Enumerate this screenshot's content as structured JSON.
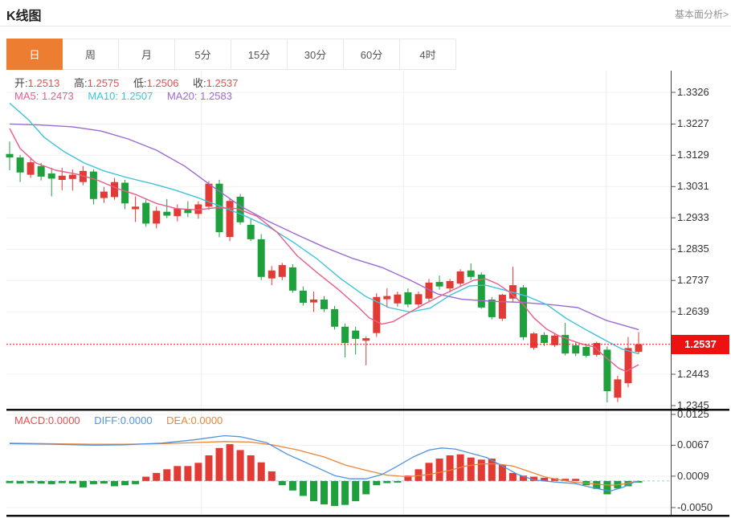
{
  "header": {
    "title": "K线图",
    "link": "基本面分析>"
  },
  "tabs": {
    "items": [
      "日",
      "周",
      "月",
      "5分",
      "15分",
      "30分",
      "60分",
      "4时"
    ],
    "selected_index": 0
  },
  "ohlc_legend": {
    "open_label": "开:",
    "open": "1.2513",
    "high_label": "高:",
    "high": "1.2575",
    "low_label": "低:",
    "low": "1.2506",
    "close_label": "收:",
    "close": "1.2537"
  },
  "ma_legend": {
    "ma5_label": "MA5:",
    "ma5": "1.2473",
    "ma10_label": "MA10:",
    "ma10": "1.2507",
    "ma20_label": "MA20:",
    "ma20": "1.2583"
  },
  "macd_legend": {
    "macd_label": "MACD:",
    "macd": "0.0000",
    "diff_label": "DIFF:",
    "diff": "0.0000",
    "dea_label": "DEA:",
    "dea": "0.0000"
  },
  "price_axis": {
    "ticks": [
      1.3326,
      1.3227,
      1.3129,
      1.3031,
      1.2933,
      1.2835,
      1.2737,
      1.2639,
      1.2443,
      1.2345
    ],
    "current_price": "1.2537",
    "current_price_value": 1.2537
  },
  "macd_axis": {
    "ticks": [
      0.0125,
      0.0067,
      0.0009,
      -0.005
    ]
  },
  "colors": {
    "up_red": "#e23b35",
    "down_green": "#1ea13c",
    "tab_accent": "#ed7d31",
    "price_flag_bg": "#ee1111",
    "ma5": "#e85d8a",
    "ma10": "#3fc3dc",
    "ma20": "#9c6ad1",
    "diff_line": "#4f94e0",
    "dea_line": "#ea8637",
    "value_red": "#e45050",
    "dotted_price_line": "#ee1111",
    "zero_dash": "#8fd2e4",
    "grid": "#f0f0f0",
    "axis": "#444"
  },
  "chart_data": [
    {
      "type": "candlestick",
      "title": "K线图 (日)",
      "ylabel": "price",
      "ylim": [
        1.2345,
        1.3326
      ],
      "grid": true,
      "legend_position": "top-left",
      "candles_ohlc": [
        [
          1.3133,
          1.3172,
          1.3082,
          1.3122
        ],
        [
          1.3122,
          1.313,
          1.3045,
          1.3075
        ],
        [
          1.3068,
          1.3118,
          1.3058,
          1.3107
        ],
        [
          1.3095,
          1.3105,
          1.305,
          1.3062
        ],
        [
          1.3072,
          1.309,
          1.3,
          1.3056
        ],
        [
          1.3052,
          1.309,
          1.302,
          1.3065
        ],
        [
          1.3055,
          1.3085,
          1.3018,
          1.3068
        ],
        [
          1.3045,
          1.3095,
          1.3035,
          1.308
        ],
        [
          1.3078,
          1.3085,
          1.2975,
          1.2992
        ],
        [
          1.2995,
          1.303,
          1.298,
          1.3015
        ],
        [
          1.2998,
          1.3058,
          1.299,
          1.3045
        ],
        [
          1.3043,
          1.3052,
          1.296,
          1.2978
        ],
        [
          1.296,
          1.3,
          1.292,
          1.2968
        ],
        [
          1.298,
          1.299,
          1.2905,
          1.2915
        ],
        [
          1.2915,
          1.2968,
          1.29,
          1.2955
        ],
        [
          1.2952,
          1.2992,
          1.2932,
          1.294
        ],
        [
          1.2938,
          1.2975,
          1.2922,
          1.2962
        ],
        [
          1.296,
          1.2985,
          1.2935,
          1.2948
        ],
        [
          1.2945,
          1.2985,
          1.293,
          1.2975
        ],
        [
          1.2968,
          1.3048,
          1.2958,
          1.304
        ],
        [
          1.304,
          1.3052,
          1.2872,
          1.2888
        ],
        [
          1.2873,
          1.2992,
          1.286,
          1.2986
        ],
        [
          1.2999,
          1.3008,
          1.2912,
          1.2919
        ],
        [
          1.2911,
          1.2932,
          1.286,
          1.2866
        ],
        [
          1.2866,
          1.2882,
          1.2738,
          1.2748
        ],
        [
          1.2743,
          1.2782,
          1.2722,
          1.2768
        ],
        [
          1.2748,
          1.2792,
          1.2738,
          1.2785
        ],
        [
          1.2778,
          1.2788,
          1.2698,
          1.2705
        ],
        [
          1.2705,
          1.2718,
          1.2658,
          1.2667
        ],
        [
          1.2668,
          1.2702,
          1.2638,
          1.2677
        ],
        [
          1.2677,
          1.2688,
          1.2638,
          1.2647
        ],
        [
          1.2647,
          1.2657,
          1.2583,
          1.2592
        ],
        [
          1.2592,
          1.2602,
          1.2496,
          1.2541
        ],
        [
          1.258,
          1.2592,
          1.2505,
          1.2554
        ],
        [
          1.2548,
          1.2562,
          1.2471,
          1.2556
        ],
        [
          1.2572,
          1.2697,
          1.256,
          1.2685
        ],
        [
          1.2678,
          1.2712,
          1.2652,
          1.2688
        ],
        [
          1.2665,
          1.2702,
          1.2655,
          1.2693
        ],
        [
          1.27,
          1.2712,
          1.2653,
          1.2662
        ],
        [
          1.2662,
          1.2702,
          1.265,
          1.2694
        ],
        [
          1.268,
          1.2742,
          1.2672,
          1.273
        ],
        [
          1.2732,
          1.2752,
          1.2708,
          1.2718
        ],
        [
          1.2712,
          1.2742,
          1.27,
          1.2735
        ],
        [
          1.2727,
          1.2772,
          1.2718,
          1.2765
        ],
        [
          1.2768,
          1.279,
          1.2738,
          1.2748
        ],
        [
          1.2755,
          1.2762,
          1.2648,
          1.2652
        ],
        [
          1.2677,
          1.2685,
          1.2615,
          1.2622
        ],
        [
          1.2617,
          1.2695,
          1.261,
          1.2692
        ],
        [
          1.268,
          1.278,
          1.267,
          1.2722
        ],
        [
          1.2715,
          1.2722,
          1.255,
          1.2559
        ],
        [
          1.2526,
          1.2575,
          1.252,
          1.2571
        ],
        [
          1.2566,
          1.2575,
          1.2532,
          1.2541
        ],
        [
          1.2534,
          1.257,
          1.2528,
          1.2564
        ],
        [
          1.2566,
          1.2604,
          1.2502,
          1.2508
        ],
        [
          1.2534,
          1.2545,
          1.25,
          1.2508
        ],
        [
          1.2529,
          1.2538,
          1.2495,
          1.2501
        ],
        [
          1.2504,
          1.2545,
          1.2498,
          1.2541
        ],
        [
          1.252,
          1.253,
          1.2355,
          1.239
        ],
        [
          1.237,
          1.2438,
          1.2356,
          1.2427
        ],
        [
          1.2415,
          1.256,
          1.2402,
          1.2525
        ],
        [
          1.2513,
          1.2575,
          1.2506,
          1.2537
        ]
      ],
      "ma5_points": [
        [
          0,
          1.3213
        ],
        [
          1,
          1.315
        ],
        [
          2.5,
          1.3105
        ],
        [
          4.4,
          1.3082
        ],
        [
          6.4,
          1.307
        ],
        [
          8.3,
          1.3052
        ],
        [
          10.2,
          1.3026
        ],
        [
          12.1,
          1.3005
        ],
        [
          14,
          1.2978
        ],
        [
          15.9,
          1.2962
        ],
        [
          17.9,
          1.2958
        ],
        [
          19.8,
          1.2965
        ],
        [
          21.7,
          1.2962
        ],
        [
          23.6,
          1.2938
        ],
        [
          25.5,
          1.2888
        ],
        [
          27.4,
          1.2815
        ],
        [
          29.3,
          1.2762
        ],
        [
          31.3,
          1.271
        ],
        [
          33.2,
          1.2655
        ],
        [
          34.3,
          1.262
        ],
        [
          35.5,
          1.26
        ],
        [
          36.6,
          1.2608
        ],
        [
          38.2,
          1.2638
        ],
        [
          39.7,
          1.2665
        ],
        [
          41.2,
          1.269
        ],
        [
          42.8,
          1.2715
        ],
        [
          44.3,
          1.2738
        ],
        [
          45.4,
          1.2742
        ],
        [
          46.6,
          1.2725
        ],
        [
          47.7,
          1.27
        ],
        [
          48.9,
          1.2665
        ],
        [
          50,
          1.262
        ],
        [
          51.2,
          1.2585
        ],
        [
          52.3,
          1.2565
        ],
        [
          53.5,
          1.255
        ],
        [
          54.6,
          1.2538
        ],
        [
          55.8,
          1.2528
        ],
        [
          56.9,
          1.2495
        ],
        [
          58.1,
          1.2462
        ],
        [
          58.8,
          1.2452
        ],
        [
          60,
          1.2473
        ]
      ],
      "ma10_points": [
        [
          0,
          1.3292
        ],
        [
          1.8,
          1.324
        ],
        [
          3.3,
          1.3185
        ],
        [
          5.2,
          1.314
        ],
        [
          7.1,
          1.3105
        ],
        [
          9,
          1.308
        ],
        [
          11.3,
          1.3058
        ],
        [
          13.6,
          1.304
        ],
        [
          15.6,
          1.3022
        ],
        [
          17.8,
          1.2998
        ],
        [
          20.2,
          1.2968
        ],
        [
          22.4,
          1.294
        ],
        [
          24.7,
          1.2905
        ],
        [
          27,
          1.2858
        ],
        [
          29.3,
          1.2805
        ],
        [
          31.6,
          1.2742
        ],
        [
          33.9,
          1.2688
        ],
        [
          36.2,
          1.2652
        ],
        [
          38.2,
          1.2638
        ],
        [
          40.1,
          1.265
        ],
        [
          42,
          1.269
        ],
        [
          43.9,
          1.272
        ],
        [
          45.4,
          1.2722
        ],
        [
          47.4,
          1.2705
        ],
        [
          49.3,
          1.2688
        ],
        [
          51.2,
          1.2662
        ],
        [
          53.1,
          1.2618
        ],
        [
          55,
          1.2582
        ],
        [
          56.9,
          1.2548
        ],
        [
          58.4,
          1.2522
        ],
        [
          60,
          1.2507
        ]
      ],
      "ma20_points": [
        [
          0,
          1.3227
        ],
        [
          2.9,
          1.3224
        ],
        [
          6,
          1.3218
        ],
        [
          8.7,
          1.3205
        ],
        [
          11.3,
          1.318
        ],
        [
          14,
          1.3145
        ],
        [
          16.7,
          1.3095
        ],
        [
          19.4,
          1.303
        ],
        [
          22.1,
          1.2968
        ],
        [
          24.7,
          1.2922
        ],
        [
          27.4,
          1.288
        ],
        [
          30.1,
          1.284
        ],
        [
          32.8,
          1.2805
        ],
        [
          35.5,
          1.2778
        ],
        [
          38.2,
          1.2738
        ],
        [
          40.8,
          1.2695
        ],
        [
          43.1,
          1.2678
        ],
        [
          45.8,
          1.2672
        ],
        [
          48.9,
          1.2668
        ],
        [
          52,
          1.266
        ],
        [
          54.2,
          1.2652
        ],
        [
          56.9,
          1.2612
        ],
        [
          60,
          1.2583
        ]
      ]
    },
    {
      "type": "bar",
      "title": "MACD",
      "ylim": [
        -0.005,
        0.0125
      ],
      "values": [
        -0.0004,
        -0.0005,
        -0.0004,
        -0.0005,
        -0.0006,
        -0.0004,
        -0.0005,
        -0.0012,
        -0.0006,
        -0.0005,
        -0.001,
        -0.0008,
        -0.0006,
        0.0008,
        0.0015,
        0.0022,
        0.0028,
        0.0028,
        0.0034,
        0.0048,
        0.0062,
        0.0069,
        0.0058,
        0.0048,
        0.0035,
        0.0018,
        -0.0008,
        -0.0018,
        -0.0028,
        -0.0038,
        -0.0044,
        -0.0047,
        -0.0045,
        -0.0038,
        -0.0025,
        -0.0008,
        -0.0004,
        -0.0003,
        0.001,
        0.0022,
        0.0034,
        0.0042,
        0.0048,
        0.005,
        0.0044,
        0.004,
        0.0042,
        0.003,
        0.0015,
        0.001,
        0.0008,
        0.0006,
        0.0005,
        0.0004,
        0.0004,
        -0.0008,
        -0.0015,
        -0.0025,
        -0.0014,
        -0.001,
        -0.0003
      ],
      "diff_points": [
        [
          0,
          0.007
        ],
        [
          4,
          0.0069
        ],
        [
          8,
          0.0067
        ],
        [
          11,
          0.0068
        ],
        [
          14.5,
          0.0071
        ],
        [
          17.5,
          0.0077
        ],
        [
          20.5,
          0.0085
        ],
        [
          22,
          0.0083
        ],
        [
          24.5,
          0.0072
        ],
        [
          26.5,
          0.005
        ],
        [
          29,
          0.0028
        ],
        [
          31,
          0.001
        ],
        [
          32.5,
          0.0004
        ],
        [
          34,
          0.0004
        ],
        [
          35.5,
          0.0012
        ],
        [
          37,
          0.0028
        ],
        [
          38.5,
          0.0045
        ],
        [
          40,
          0.0058
        ],
        [
          41.2,
          0.0062
        ],
        [
          42.5,
          0.006
        ],
        [
          44,
          0.0052
        ],
        [
          45.5,
          0.0044
        ],
        [
          47,
          0.0028
        ],
        [
          48.5,
          0.0012
        ],
        [
          50,
          0.0002
        ],
        [
          52,
          -0.0002
        ],
        [
          54,
          -0.0005
        ],
        [
          55,
          -0.001
        ],
        [
          56.5,
          -0.0016
        ],
        [
          57.3,
          -0.0019
        ],
        [
          58.5,
          -0.0012
        ],
        [
          59.5,
          -0.0003
        ],
        [
          60,
          0.0
        ]
      ],
      "dea_points": [
        [
          0,
          0.0071
        ],
        [
          4,
          0.007
        ],
        [
          8,
          0.0069
        ],
        [
          11,
          0.0069
        ],
        [
          14.5,
          0.007
        ],
        [
          17.5,
          0.0072
        ],
        [
          20.5,
          0.0074
        ],
        [
          23,
          0.0073
        ],
        [
          25,
          0.0068
        ],
        [
          27.5,
          0.0058
        ],
        [
          30,
          0.0045
        ],
        [
          32,
          0.003
        ],
        [
          34,
          0.002
        ],
        [
          36,
          0.0011
        ],
        [
          38,
          0.0008
        ],
        [
          40,
          0.0012
        ],
        [
          42,
          0.002
        ],
        [
          43.5,
          0.0028
        ],
        [
          45,
          0.0032
        ],
        [
          46.5,
          0.0032
        ],
        [
          48,
          0.0028
        ],
        [
          49.5,
          0.0018
        ],
        [
          51,
          0.0008
        ],
        [
          52.5,
          0.0002
        ],
        [
          54,
          -0.0003
        ],
        [
          55,
          -0.0004
        ],
        [
          56.5,
          -0.0007
        ],
        [
          57.5,
          -0.0008
        ],
        [
          58.5,
          -0.0006
        ],
        [
          59.5,
          -0.0002
        ],
        [
          60,
          -0.0001
        ]
      ]
    }
  ]
}
